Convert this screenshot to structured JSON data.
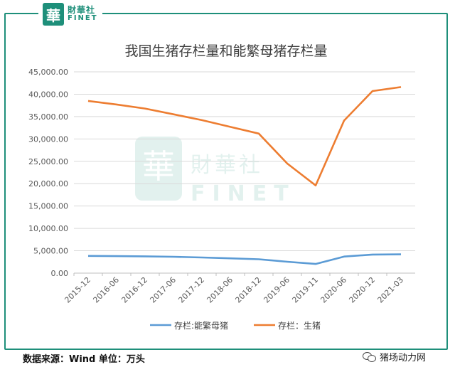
{
  "brand": {
    "cn": "財華社",
    "en": "FINET",
    "badge": "華"
  },
  "footer": {
    "source": "数据来源：Wind 单位：万头",
    "account": "猪场动力网"
  },
  "chart_data": {
    "type": "line",
    "title": "我国生猪存栏量和能繁母猪存栏量",
    "categories": [
      "2015-12",
      "2016-06",
      "2016-12",
      "2017-06",
      "2017-12",
      "2018-06",
      "2018-12",
      "2019-06",
      "2019-11",
      "2020-06",
      "2020-12",
      "2021-03"
    ],
    "ylim": [
      0,
      45000
    ],
    "yticks": [
      "0.00",
      "5,000.00",
      "10,000.00",
      "15,000.00",
      "20,000.00",
      "25,000.00",
      "30,000.00",
      "35,000.00",
      "40,000.00",
      "45,000.00"
    ],
    "grid": true,
    "legend": "bottom",
    "series": [
      {
        "name": "存栏:能繁母猪",
        "color": "#5b9bd5",
        "values": [
          3850,
          3800,
          3750,
          3650,
          3500,
          3300,
          3100,
          2550,
          2050,
          3700,
          4150,
          4200
        ]
      },
      {
        "name": "存栏：生猪",
        "color": "#ed7d31",
        "values": [
          38500,
          37700,
          36800,
          35500,
          34200,
          32700,
          31200,
          24500,
          19600,
          34100,
          40700,
          41600
        ]
      }
    ]
  }
}
